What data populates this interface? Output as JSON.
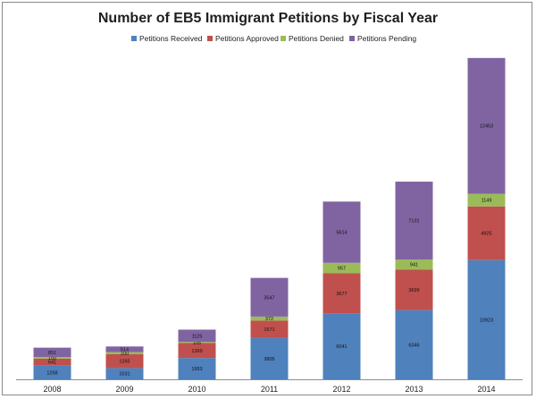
{
  "chart_data": {
    "type": "bar",
    "stacked": true,
    "title": "Number of EB5 Immigrant Petitions by Fiscal Year",
    "xlabel": "",
    "ylabel": "",
    "legend_position": "top",
    "grid": false,
    "categories": [
      "2008",
      "2009",
      "2010",
      "2011",
      "2012",
      "2013",
      "2014"
    ],
    "series": [
      {
        "name": "Petitions Received",
        "color": "#4f81bd",
        "values": [
          1258,
          1031,
          1953,
          3805,
          6041,
          6346,
          10923
        ]
      },
      {
        "name": "Petitions Approved",
        "color": "#c0504d",
        "values": [
          641,
          1265,
          1369,
          1571,
          3677,
          3699,
          4925
        ]
      },
      {
        "name": "Petitions Denied",
        "color": "#9bbb59",
        "values": [
          150,
          200,
          105,
          372,
          957,
          941,
          1149
        ]
      },
      {
        "name": "Petitions Pending",
        "color": "#8064a2",
        "values": [
          851,
          514,
          1125,
          3547,
          5614,
          7131,
          12453
        ]
      }
    ],
    "ylim": [
      0,
      30500
    ]
  }
}
